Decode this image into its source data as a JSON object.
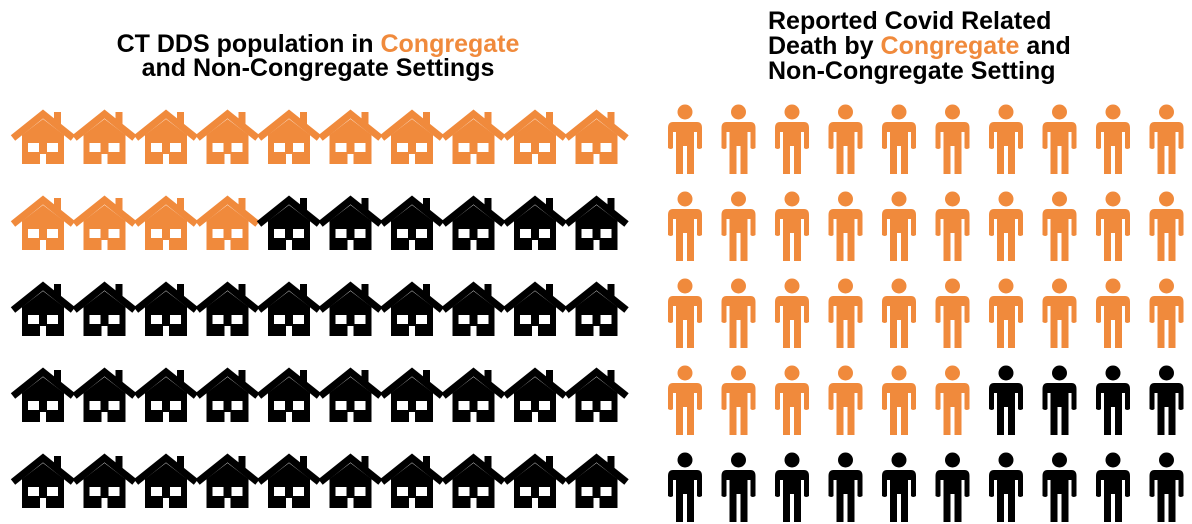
{
  "chart_data": [
    {
      "type": "pictogram",
      "icon": "house",
      "title_lines": [
        [
          {
            "text": "CT DDS population in ",
            "color": "#000000"
          },
          {
            "text": "Congregate",
            "color": "#f08a3c"
          }
        ],
        [
          {
            "text": "and Non-Congregate Settings",
            "color": "#000000"
          }
        ]
      ],
      "values": [
        14,
        36
      ],
      "colors": [
        "#f08a3c",
        "#000000"
      ]
    },
    {
      "type": "pictogram",
      "icon": "person",
      "title_lines": [
        [
          {
            "text": "Reported Covid Related",
            "color": "#000000"
          }
        ],
        [
          {
            "text": "Death by ",
            "color": "#000000"
          },
          {
            "text": "Congregate",
            "color": "#f08a3c"
          },
          {
            "text": " and",
            "color": "#000000"
          }
        ],
        [
          {
            "text": "Non-Congregate Setting",
            "color": "#000000"
          }
        ]
      ],
      "values": [
        36,
        14
      ],
      "colors": [
        "#f08a3c",
        "#000000"
      ]
    }
  ]
}
